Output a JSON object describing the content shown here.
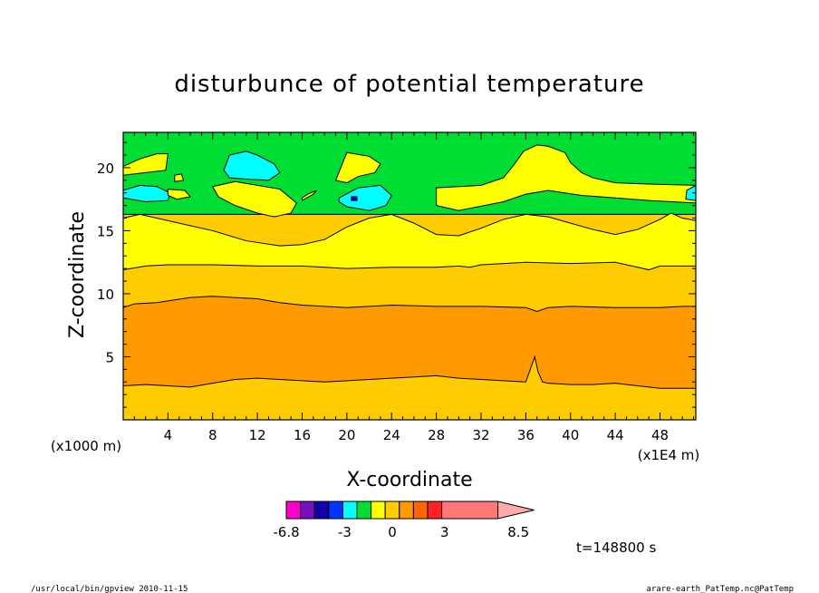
{
  "chart_data": {
    "type": "heatmap",
    "title": "disturbunce of potential temperature",
    "xlabel": "X-coordinate",
    "ylabel": "Z-coordinate",
    "x_unit": "(x1E4 m)",
    "y_unit": "(x1000 m)",
    "xlim": [
      0,
      51.2
    ],
    "ylim": [
      0,
      22.8
    ],
    "x_ticks": [
      4,
      8,
      12,
      16,
      20,
      24,
      28,
      32,
      36,
      40,
      44,
      48
    ],
    "y_ticks": [
      5,
      10,
      15,
      20
    ],
    "x_tick_labels": [
      "4",
      "8",
      "12",
      "16",
      "20",
      "24",
      "28",
      "32",
      "36",
      "40",
      "44",
      "48"
    ],
    "y_tick_labels": [
      "5",
      "10",
      "15",
      "20"
    ],
    "layers": [
      {
        "name": "green-band",
        "color": "#00dd33",
        "top_x": [
          0,
          51.2
        ],
        "top_z": [
          22.8,
          22.8
        ],
        "bot_x": [
          0,
          51.2
        ],
        "bot_z": [
          16.3,
          16.3
        ]
      },
      {
        "name": "yellow-band",
        "color": "#ffff00",
        "top_x": [
          0,
          1.5,
          3,
          5,
          8,
          11,
          14,
          16,
          18,
          20,
          22,
          24,
          26,
          28,
          30,
          32,
          34,
          36,
          38,
          40,
          42,
          44,
          46,
          48,
          49,
          50,
          51.2
        ],
        "top_z": [
          16.0,
          16.3,
          16.0,
          15.6,
          15.0,
          14.2,
          13.8,
          13.9,
          14.3,
          15.3,
          16.0,
          16.3,
          15.6,
          14.7,
          14.6,
          15.2,
          15.9,
          16.3,
          16.1,
          15.6,
          15.1,
          14.7,
          15.1,
          15.9,
          16.4,
          16.0,
          15.8
        ],
        "bot_z": [
          11.9,
          11.9,
          11.9,
          11.9,
          11.9,
          11.9,
          11.9,
          11.9,
          11.9,
          11.9,
          11.9,
          11.9,
          11.9,
          11.9,
          11.9,
          11.9,
          11.9,
          11.9,
          11.9,
          11.9,
          11.9,
          11.9,
          11.9,
          11.9,
          11.9,
          11.9,
          11.9
        ]
      },
      {
        "name": "light-orange-band",
        "color": "#ffcc00",
        "top_x": [
          0,
          2,
          4,
          8,
          12,
          16,
          18,
          20,
          24,
          28,
          30,
          31,
          32,
          36,
          40,
          44,
          46,
          47,
          48,
          51.2
        ],
        "top_z": [
          11.9,
          12.2,
          12.3,
          12.3,
          12.2,
          12.2,
          12.1,
          12.0,
          12.1,
          12.1,
          12.2,
          12.1,
          12.3,
          12.5,
          12.4,
          12.5,
          12.1,
          11.9,
          12.2,
          12.2
        ]
      },
      {
        "name": "orange-band",
        "color": "#ff9900",
        "top_x": [
          0,
          1,
          3,
          6,
          8,
          12,
          14,
          16,
          20,
          24,
          28,
          32,
          36,
          37,
          38,
          40,
          44,
          48,
          50,
          51.2
        ],
        "top_z": [
          8.9,
          9.2,
          9.3,
          9.7,
          9.8,
          9.6,
          9.3,
          9.1,
          8.9,
          9.1,
          9.0,
          9.0,
          8.9,
          8.6,
          8.9,
          9.0,
          8.9,
          8.9,
          9.0,
          9.0
        ],
        "bot_x": [
          0,
          2,
          4,
          6,
          8,
          10,
          12,
          14,
          16,
          18,
          20,
          22,
          24,
          26,
          28,
          30,
          32,
          34,
          36,
          36.8,
          37.1,
          37.5,
          38,
          40,
          42,
          44,
          46,
          48,
          50,
          51.2
        ],
        "bot_z": [
          2.7,
          2.8,
          2.7,
          2.6,
          2.9,
          3.2,
          3.3,
          3.2,
          3.1,
          3.0,
          3.1,
          3.2,
          3.3,
          3.4,
          3.5,
          3.3,
          3.2,
          3.1,
          3.0,
          5.0,
          3.8,
          3.0,
          2.9,
          2.8,
          2.8,
          2.9,
          2.7,
          2.5,
          2.5,
          2.5
        ]
      }
    ],
    "patches": [
      {
        "name": "yellow-patch",
        "color": "#ffff00",
        "x": [
          0,
          3.8,
          4.0,
          3.0,
          1.5,
          0
        ],
        "z": [
          19.4,
          19.8,
          21.1,
          21.1,
          20.7,
          20.1
        ]
      },
      {
        "name": "yellow-patch",
        "color": "#ffff00",
        "x": [
          4.6,
          5.4,
          5.2,
          4.6
        ],
        "z": [
          18.9,
          19.0,
          19.5,
          19.4
        ]
      },
      {
        "name": "cyan-patch",
        "color": "#00ffff",
        "x": [
          0,
          2,
          4,
          4.2,
          3,
          1.5,
          0
        ],
        "z": [
          17.6,
          17.3,
          17.4,
          18.0,
          18.5,
          18.6,
          18.2
        ]
      },
      {
        "name": "yellow-patch",
        "color": "#ffff00",
        "x": [
          4.0,
          5.5,
          6.0,
          4.8,
          4.0
        ],
        "z": [
          18.3,
          18.2,
          17.7,
          17.5,
          17.8
        ]
      },
      {
        "name": "cyan-patch",
        "color": "#00ffff",
        "x": [
          9,
          9.5,
          11,
          12,
          13.5,
          14,
          13,
          11,
          9.5
        ],
        "z": [
          19.8,
          21.0,
          21.3,
          21.0,
          20.3,
          19.6,
          19.0,
          19.1,
          19.2
        ]
      },
      {
        "name": "yellow-patch",
        "color": "#ffff00",
        "x": [
          8,
          10,
          12,
          14,
          15.5,
          15,
          13.5,
          12,
          10,
          8.5
        ],
        "z": [
          18.5,
          18.9,
          18.6,
          18.3,
          17.2,
          16.4,
          16.1,
          16.4,
          17.0,
          17.7
        ]
      },
      {
        "name": "yellow-patch",
        "color": "#ffff00",
        "x": [
          16,
          17,
          17.3,
          16.5,
          16
        ],
        "z": [
          17.4,
          17.9,
          18.2,
          17.9,
          17.6
        ]
      },
      {
        "name": "yellow-patch",
        "color": "#ffff00",
        "x": [
          19,
          20,
          22,
          23,
          22.5,
          21,
          20,
          19
        ],
        "z": [
          19.0,
          21.2,
          20.9,
          20.3,
          19.6,
          19.3,
          18.8,
          19.0
        ]
      },
      {
        "name": "cyan-patch",
        "color": "#00ffff",
        "x": [
          19.3,
          21,
          23,
          24,
          23.5,
          22,
          20,
          19.3
        ],
        "z": [
          17.6,
          18.4,
          18.6,
          17.8,
          17.0,
          16.6,
          16.9,
          17.3
        ]
      },
      {
        "name": "blue-patch",
        "color": "#0000ff",
        "x": [
          20.4,
          20.9,
          20.9,
          20.4
        ],
        "z": [
          17.4,
          17.4,
          17.7,
          17.7
        ]
      },
      {
        "name": "yellow-patch",
        "color": "#ffff00",
        "x": [
          28,
          30,
          32,
          34,
          35,
          35.8,
          37,
          38,
          39.5,
          40,
          41,
          42,
          44,
          47,
          51.2,
          51.2,
          47,
          44,
          41,
          38,
          36,
          34,
          30,
          28
        ],
        "z": [
          18.4,
          18.5,
          18.6,
          19.2,
          20.3,
          21.3,
          21.8,
          21.7,
          21.2,
          20.4,
          19.6,
          19.2,
          18.8,
          18.7,
          18.6,
          17.2,
          17.4,
          17.6,
          17.8,
          18.2,
          17.9,
          17.3,
          16.6,
          17.0
        ]
      },
      {
        "name": "cyan-patch",
        "color": "#00ffff",
        "x": [
          50.3,
          51.2,
          51.2,
          50.4
        ],
        "z": [
          17.5,
          17.4,
          18.6,
          18.2
        ]
      }
    ],
    "colorbar": {
      "colors": [
        "#ff00cc",
        "#7711bb",
        "#1100aa",
        "#0033ff",
        "#00ffff",
        "#00dd33",
        "#ffff00",
        "#ffcc00",
        "#ff9900",
        "#ff6600",
        "#ff2222",
        "#ff7777",
        "#ffaaaa"
      ],
      "tick_labels": [
        "-6.8",
        "-3",
        "0",
        "3",
        "8.5"
      ]
    },
    "time_label": "t=148800 s"
  },
  "footer": {
    "left": "/usr/local/bin/gpview   2010-11-15",
    "right": "arare-earth_PatTemp.nc@PatTemp"
  }
}
